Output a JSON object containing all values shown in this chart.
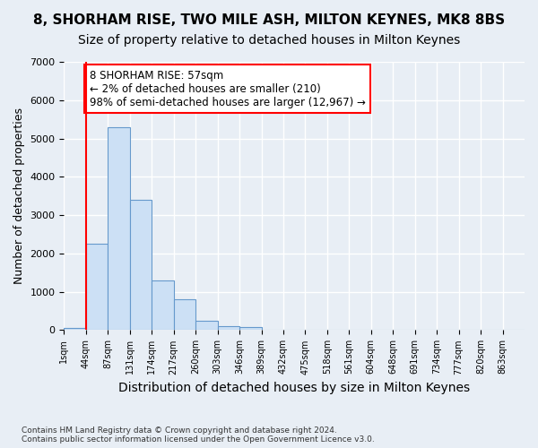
{
  "title1": "8, SHORHAM RISE, TWO MILE ASH, MILTON KEYNES, MK8 8BS",
  "title2": "Size of property relative to detached houses in Milton Keynes",
  "xlabel": "Distribution of detached houses by size in Milton Keynes",
  "ylabel": "Number of detached properties",
  "footnote": "Contains HM Land Registry data © Crown copyright and database right 2024.\nContains public sector information licensed under the Open Government Licence v3.0.",
  "bin_labels": [
    "1sqm",
    "44sqm",
    "87sqm",
    "131sqm",
    "174sqm",
    "217sqm",
    "260sqm",
    "303sqm",
    "346sqm",
    "389sqm",
    "432sqm",
    "475sqm",
    "518sqm",
    "561sqm",
    "604sqm",
    "648sqm",
    "691sqm",
    "734sqm",
    "777sqm",
    "820sqm",
    "863sqm"
  ],
  "bar_values": [
    50,
    2250,
    5300,
    3400,
    1300,
    800,
    250,
    100,
    80,
    0,
    0,
    0,
    0,
    0,
    0,
    0,
    0,
    0,
    0,
    0,
    0
  ],
  "bar_color": "#cce0f5",
  "bar_edge_color": "#6699cc",
  "red_line_x": 1,
  "annotation_text": "8 SHORHAM RISE: 57sqm\n← 2% of detached houses are smaller (210)\n98% of semi-detached houses are larger (12,967) →",
  "annotation_box_color": "white",
  "annotation_box_edge": "red",
  "ylim": [
    0,
    7000
  ],
  "yticks": [
    0,
    1000,
    2000,
    3000,
    4000,
    5000,
    6000,
    7000
  ],
  "background_color": "#e8eef5",
  "grid_color": "white",
  "title1_fontsize": 11,
  "title2_fontsize": 10,
  "xlabel_fontsize": 10,
  "ylabel_fontsize": 9
}
